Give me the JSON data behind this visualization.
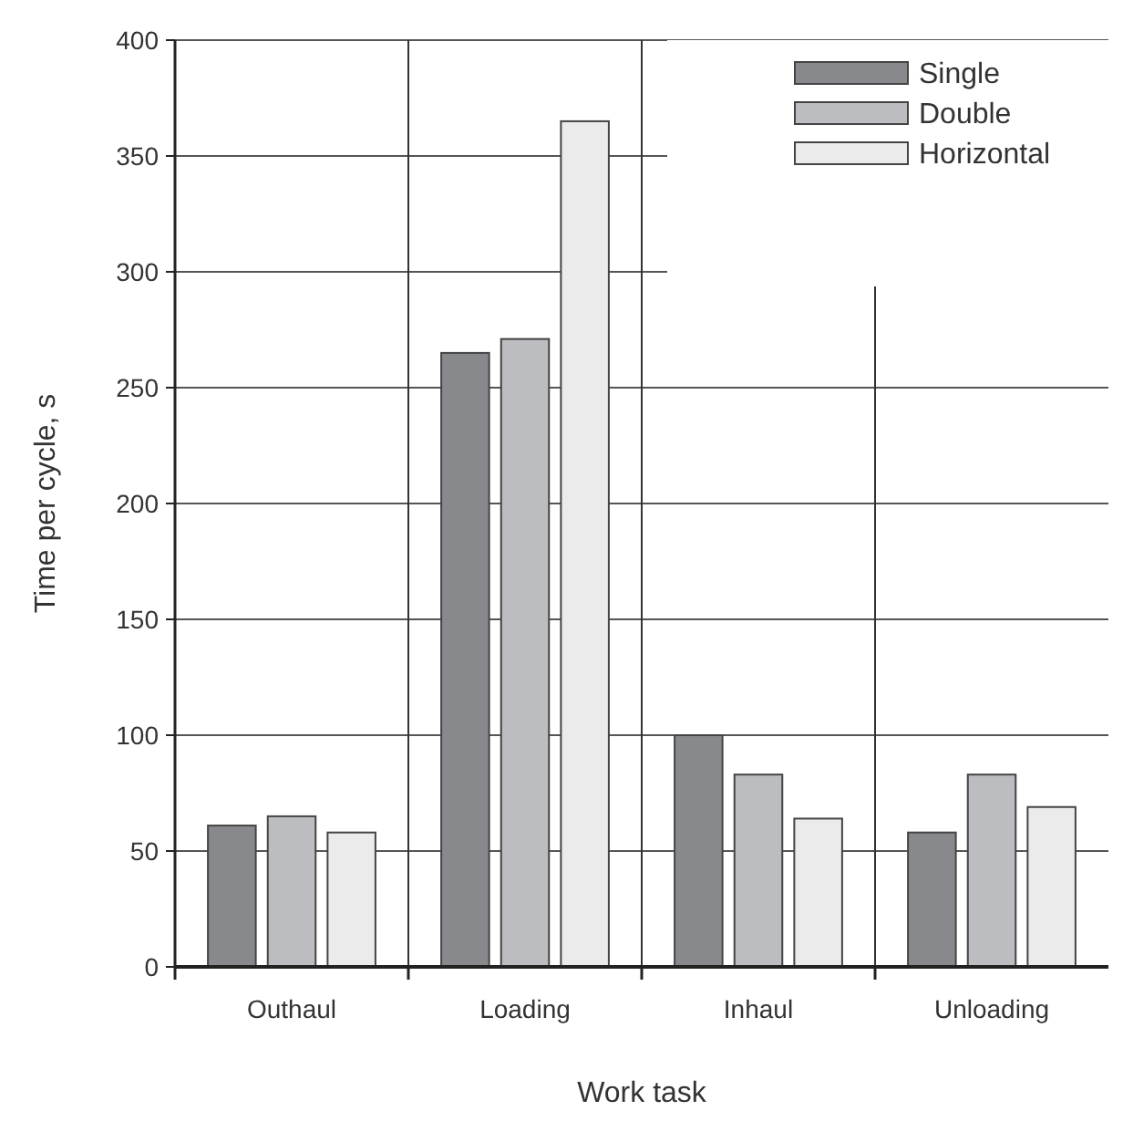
{
  "chart_data": {
    "type": "bar",
    "xlabel": "Work task",
    "ylabel": "Time per cycle, s",
    "categories": [
      "Outhaul",
      "Loading",
      "Inhaul",
      "Unloading"
    ],
    "series": [
      {
        "name": "Single",
        "color": "#88898d",
        "values": [
          61,
          265,
          100,
          58
        ]
      },
      {
        "name": "Double",
        "color": "#bcbdc1",
        "values": [
          65,
          271,
          83,
          83
        ]
      },
      {
        "name": "Horizontal",
        "color": "#ebebeb",
        "values": [
          58,
          365,
          64,
          69
        ]
      }
    ],
    "ylim": [
      0,
      400
    ],
    "yticks": [
      0,
      50,
      100,
      150,
      200,
      250,
      300,
      350,
      400
    ],
    "grid": true,
    "legend": "top right"
  }
}
